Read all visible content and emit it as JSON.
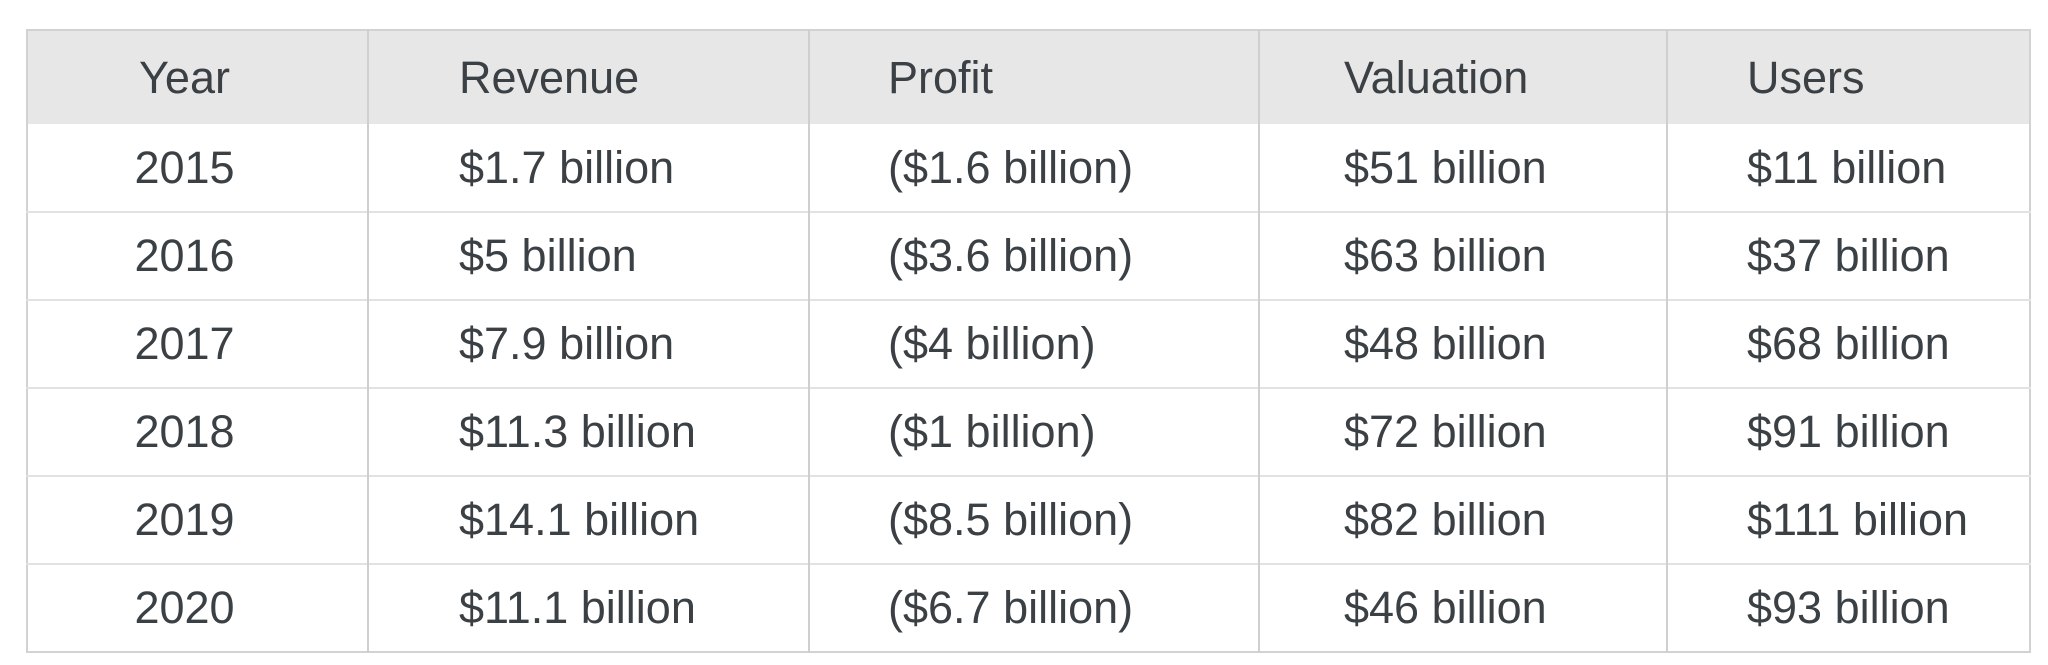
{
  "chart_data": {
    "type": "table",
    "title": "",
    "columns": [
      "Year",
      "Revenue",
      "Profit",
      "Valuation",
      "Users"
    ],
    "rows": [
      [
        "2015",
        "$1.7 billion",
        "($1.6 billion)",
        "$51 billion",
        "$11 billion"
      ],
      [
        "2016",
        "$5 billion",
        "($3.6 billion)",
        "$63 billion",
        "$37 billion"
      ],
      [
        "2017",
        "$7.9 billion",
        "($4 billion)",
        "$48 billion",
        "$68 billion"
      ],
      [
        "2018",
        "$11.3 billion",
        "($1 billion)",
        "$72 billion",
        "$91 billion"
      ],
      [
        "2019",
        "$14.1 billion",
        "($8.5 billion)",
        "$82 billion",
        "$111 billion"
      ],
      [
        "2020",
        "$11.1 billion",
        "($6.7 billion)",
        "$46 billion",
        "$93 billion"
      ]
    ],
    "layout": {
      "grid": "on",
      "header_row_shaded": true,
      "value_columns_alignment": "left",
      "year_column_alignment": "center"
    }
  },
  "colors": {
    "background": "#ffffff",
    "header_background": "#e7e7e7",
    "text": "#3b4045",
    "vertical_border": "#cfcfcf",
    "horizontal_border": "#e2e2e2",
    "outer_border": "#d2d2d2"
  }
}
